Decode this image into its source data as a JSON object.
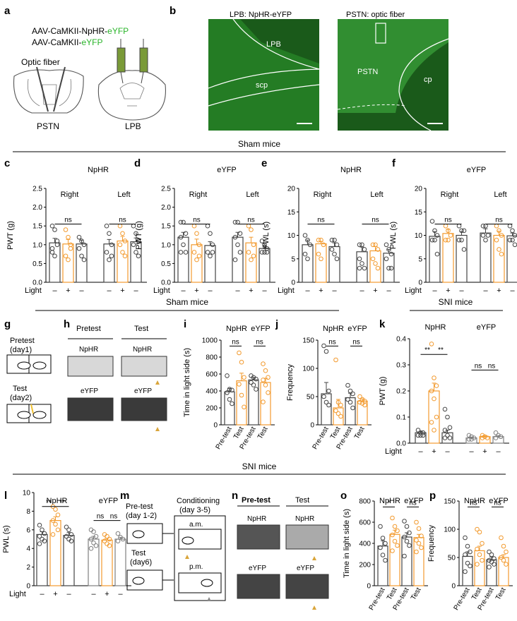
{
  "panel_letters": [
    "a",
    "b",
    "c",
    "d",
    "e",
    "f",
    "g",
    "h",
    "i",
    "j",
    "k",
    "l",
    "m",
    "n",
    "o",
    "p"
  ],
  "section_titles": {
    "sham1": "Sham mice",
    "sham2": "Sham mice",
    "sni1": "SNI mice",
    "sni2": "SNI mice"
  },
  "panel_a": {
    "line1_prefix": "AAV-CaMKII-NpHR-",
    "line1_suffix": "eYFP",
    "line2_prefix": "AAV-CaMKII-",
    "line2_suffix": "eYFP",
    "fiber": "Optic fiber",
    "left": "PSTN",
    "right": "LPB"
  },
  "panel_b": {
    "left_title": "LPB: NpHR-eYFP",
    "right_title": "PSTN: optic fiber",
    "lpb": "LPB",
    "scp": "scp",
    "pstn": "PSTN",
    "cp": "cp"
  },
  "light_label": "Light",
  "light_marks": [
    "–",
    "+",
    "–"
  ],
  "ns": "ns",
  "sig2": "**",
  "sig1": "*",
  "panel_g": {
    "pretest": "Pretest",
    "day1": "(day1)",
    "test": "Test",
    "day2": "(day2)"
  },
  "panel_h": {
    "pretest": "Pretest",
    "test": "Test",
    "npHR": "NpHR",
    "eyfp": "eYFP"
  },
  "panel_m": {
    "pretest": "Pre-test",
    "day12": "(day 1-2)",
    "cond": "Conditioning",
    "day35": "(day 3-5)",
    "am": "a.m.",
    "pm": "p.m.",
    "test": "Test",
    "day6": "(day6)"
  },
  "panel_n": {
    "pretest": "Pre-test",
    "test": "Test",
    "npHR": "NpHR",
    "eyfp": "eYFP"
  },
  "colors": {
    "orange": "#f29a2e",
    "grey": "#7f7f7f",
    "green": "#2ab52a",
    "gold": "#d9a53a",
    "darkgrey": "#444444"
  },
  "chart_data": [
    {
      "panel": "c",
      "type": "bar",
      "title": "NpHR",
      "groups": [
        "Right",
        "Left"
      ],
      "ylabel": "PWT (g)",
      "ylim": [
        0,
        2.5
      ],
      "yticks": [
        "0.0",
        "0.5",
        "1.0",
        "1.5",
        "2.0",
        "2.5"
      ],
      "values": [
        [
          1.05,
          1.02,
          1.02
        ],
        [
          1.02,
          1.1,
          1.08
        ]
      ],
      "errors": [
        [
          0.12,
          0.12,
          0.1
        ],
        [
          0.12,
          0.12,
          0.1
        ]
      ],
      "points": [
        [
          [
            1.5,
            1.4,
            1.0,
            0.8,
            0.7,
            1.1,
            0.9
          ],
          [
            1.4,
            1.2,
            1.0,
            0.7,
            0.6,
            0.9
          ],
          [
            1.2,
            1.1,
            1.0,
            0.9,
            0.7,
            0.6
          ]
        ],
        [
          [
            1.5,
            1.3,
            1.0,
            0.8,
            0.6,
            0.7
          ],
          [
            1.5,
            1.3,
            1.1,
            1.0,
            0.8,
            0.7
          ],
          [
            1.5,
            1.3,
            1.1,
            1.0,
            0.8,
            0.7
          ]
        ]
      ],
      "ns": [
        [
          0,
          2
        ],
        [
          0,
          2
        ]
      ]
    },
    {
      "panel": "d",
      "type": "bar",
      "title": "eYFP",
      "groups": [
        "Right",
        "Left"
      ],
      "ylabel": "PWT (g)",
      "ylim": [
        0,
        2.5
      ],
      "yticks": [
        "0.0",
        "0.5",
        "1.0",
        "1.5",
        "2.0",
        "2.5"
      ],
      "values": [
        [
          1.2,
          1.0,
          0.98
        ],
        [
          1.2,
          1.05,
          0.9
        ]
      ],
      "errors": [
        [
          0.13,
          0.15,
          0.1
        ],
        [
          0.13,
          0.15,
          0.06
        ]
      ],
      "points": [
        [
          [
            1.6,
            1.6,
            1.3,
            1.2,
            1.0,
            0.8,
            0.8
          ],
          [
            1.5,
            1.3,
            1.0,
            0.8,
            0.6,
            0.7
          ],
          [
            1.5,
            1.3,
            1.0,
            0.8,
            0.7,
            0.8
          ]
        ],
        [
          [
            1.6,
            1.6,
            1.3,
            1.2,
            1.0,
            0.8,
            0.6
          ],
          [
            1.5,
            1.4,
            1.0,
            0.8,
            0.6,
            0.7
          ],
          [
            1.1,
            1.0,
            0.9,
            0.8,
            0.8,
            0.8
          ]
        ]
      ],
      "ns": [
        [
          0,
          2
        ],
        [
          0,
          2
        ]
      ]
    },
    {
      "panel": "e",
      "type": "bar",
      "title": "NpHR",
      "groups": [
        "Right",
        "Left"
      ],
      "ylabel": "PWL (s)",
      "ylim": [
        0,
        20
      ],
      "yticks": [
        "0",
        "5",
        "10",
        "15",
        "20"
      ],
      "values": [
        [
          8,
          8.2,
          7.6
        ],
        [
          6.5,
          6.7,
          6.2
        ]
      ],
      "errors": [
        [
          1.0,
          0.5,
          0.8
        ],
        [
          1.0,
          0.9,
          0.8
        ]
      ],
      "points": [
        [
          [
            10,
            9,
            8,
            6,
            5
          ],
          [
            9,
            9,
            8,
            6,
            5
          ],
          [
            9,
            9,
            8,
            7,
            6,
            5
          ]
        ],
        [
          [
            8,
            8,
            7,
            5,
            4,
            3,
            3
          ],
          [
            8,
            8,
            7,
            5,
            4,
            3
          ],
          [
            8,
            7,
            6,
            5,
            3,
            3
          ]
        ]
      ],
      "ns": [
        [
          0,
          2
        ],
        [
          0,
          2
        ]
      ]
    },
    {
      "panel": "f",
      "type": "bar",
      "title": "eYFP",
      "groups": [
        "Right",
        "Left"
      ],
      "ylabel": "PWL (s)",
      "ylim": [
        0,
        20
      ],
      "yticks": [
        "0",
        "5",
        "10",
        "15",
        "20"
      ],
      "values": [
        [
          9.8,
          10.4,
          10
        ],
        [
          10.5,
          10,
          9.9
        ]
      ],
      "errors": [
        [
          1.0,
          0.9,
          0.8
        ],
        [
          0.9,
          0.9,
          0.6
        ]
      ],
      "points": [
        [
          [
            13,
            11,
            10,
            9,
            9,
            6
          ],
          [
            12,
            11,
            10,
            9,
            9
          ],
          [
            12,
            11,
            11,
            9,
            9,
            7
          ]
        ],
        [
          [
            12,
            12,
            10,
            10,
            9
          ],
          [
            12,
            11,
            10,
            9,
            7,
            6
          ],
          [
            12,
            11,
            10,
            9,
            9,
            8
          ]
        ]
      ],
      "ns": [
        [
          0,
          2
        ],
        [
          0,
          2
        ]
      ]
    },
    {
      "panel": "i",
      "type": "bar",
      "ylabel": "Time in light side (s)",
      "ylim": [
        0,
        1000
      ],
      "yticks": [
        "0",
        "200",
        "400",
        "600",
        "800",
        "1000"
      ],
      "groups": [
        "NpHR",
        "eYFP"
      ],
      "xticks": [
        "Pre-test",
        "Test",
        "Pre-test",
        "Test"
      ],
      "values": [
        390,
        520,
        530,
        500
      ],
      "errors": [
        [
          40,
          90
        ],
        [
          30,
          50
        ]
      ],
      "points": [
        [
          580,
          420,
          410,
          380,
          300,
          250
        ],
        [
          850,
          740,
          560,
          480,
          350,
          210
        ],
        [
          580,
          560,
          540,
          500,
          470,
          420
        ],
        [
          720,
          640,
          560,
          530,
          470,
          380,
          270
        ]
      ],
      "ns": [
        [
          0,
          1
        ],
        [
          2,
          3
        ]
      ]
    },
    {
      "panel": "j",
      "type": "bar",
      "ylabel": "Frequency",
      "ylim": [
        0,
        150
      ],
      "yticks": [
        "0",
        "50",
        "100",
        "150"
      ],
      "groups": [
        "NpHR",
        "eYFP"
      ],
      "xticks": [
        "Pre-test",
        "Test",
        "Pre-test",
        "Test"
      ],
      "values": [
        55,
        30,
        48,
        42
      ],
      "errors": [
        [
          20,
          15
        ],
        [
          8,
          4
        ]
      ],
      "points": [
        [
          140,
          130,
          60,
          50,
          40,
          35
        ],
        [
          115,
          40,
          35,
          25,
          20,
          15
        ],
        [
          70,
          60,
          55,
          45,
          40,
          30
        ],
        [
          50,
          45,
          42,
          40,
          38,
          35
        ]
      ],
      "ns": [
        [
          0,
          1
        ],
        [
          2,
          3
        ]
      ]
    },
    {
      "panel": "k",
      "type": "bar",
      "ylabel": "PWT (g)",
      "ylim": [
        0,
        0.4
      ],
      "yticks": [
        "0.0",
        "0.1",
        "0.2",
        "0.3",
        "0.4"
      ],
      "groups": [
        "NpHR",
        "eYFP"
      ],
      "values": [
        [
          0.04,
          0.2,
          0.04
        ],
        [
          0.02,
          0.025,
          0.025
        ]
      ],
      "errors": [
        [
          0.005,
          0.03,
          0.01
        ],
        [
          0.003,
          0.003,
          0.004
        ]
      ],
      "points": [
        [
          [
            0.05,
            0.04,
            0.04,
            0.03,
            0.03,
            0.03
          ],
          [
            0.38,
            0.25,
            0.22,
            0.2,
            0.17,
            0.1,
            0.08,
            0.05
          ],
          [
            0.13,
            0.1,
            0.06,
            0.05,
            0.03,
            0.02,
            0.02
          ]
        ],
        [
          [
            0.03,
            0.025,
            0.02,
            0.015,
            0.015
          ],
          [
            0.03,
            0.025,
            0.02,
            0.02
          ],
          [
            0.04,
            0.03,
            0.025,
            0.02
          ]
        ]
      ],
      "sig": [
        [
          "**",
          "**"
        ],
        [
          "ns",
          "ns"
        ]
      ]
    },
    {
      "panel": "l",
      "type": "bar",
      "ylabel": "PWL (s)",
      "ylim": [
        0,
        10
      ],
      "yticks": [
        "0",
        "2",
        "4",
        "6",
        "8",
        "10"
      ],
      "groups": [
        "NpHR",
        "eYFP"
      ],
      "values": [
        [
          5.5,
          7.0,
          5.4
        ],
        [
          5.0,
          4.9,
          5.0
        ]
      ],
      "errors": [
        [
          0.3,
          0.4,
          0.3
        ],
        [
          0.3,
          0.2,
          0.2
        ]
      ],
      "points": [
        [
          [
            6.5,
            6.0,
            5.6,
            5.3,
            5.0,
            4.8,
            4.5
          ],
          [
            8.5,
            8.2,
            7.6,
            7.0,
            6.6,
            6.0,
            5.5
          ],
          [
            6.3,
            6.0,
            5.5,
            5.3,
            5.0,
            4.8
          ]
        ],
        [
          [
            6.0,
            5.8,
            5.3,
            5.0,
            4.6,
            4.3,
            4.0
          ],
          [
            5.5,
            5.3,
            5.0,
            4.8,
            4.5,
            4.3
          ],
          [
            5.6,
            5.2,
            5.0,
            4.8
          ]
        ]
      ],
      "sig": [
        [
          "**",
          "**"
        ],
        [
          "ns",
          "ns"
        ]
      ]
    },
    {
      "panel": "o",
      "type": "bar",
      "ylabel": "Time in light side (s)",
      "ylim": [
        0,
        800
      ],
      "yticks": [
        "0",
        "200",
        "400",
        "600",
        "800"
      ],
      "groups": [
        "NpHR",
        "eYFP"
      ],
      "xticks": [
        "Pre-test",
        "Test",
        "Pre-test",
        "Test"
      ],
      "values": [
        375,
        485,
        460,
        455
      ],
      "errors": [
        [
          50,
          40
        ],
        [
          40,
          30
        ]
      ],
      "points": [
        [
          560,
          450,
          400,
          360,
          290,
          240
        ],
        [
          640,
          560,
          520,
          480,
          420,
          380,
          330
        ],
        [
          610,
          560,
          500,
          460,
          420,
          380,
          280
        ],
        [
          600,
          540,
          470,
          430,
          400,
          360,
          320
        ]
      ],
      "sig": [
        "*",
        "ns"
      ]
    },
    {
      "panel": "p",
      "type": "bar",
      "ylabel": "Frequency",
      "ylim": [
        0,
        150
      ],
      "yticks": [
        "0",
        "50",
        "100",
        "150"
      ],
      "groups": [
        "NpHR",
        "eYFP"
      ],
      "xticks": [
        "Pre-test",
        "Test",
        "Pre-test",
        "Test"
      ],
      "values": [
        52,
        62,
        46,
        50
      ],
      "errors": [
        [
          8,
          8
        ],
        [
          5,
          5
        ]
      ],
      "points": [
        [
          85,
          70,
          60,
          55,
          40,
          35,
          25
        ],
        [
          100,
          95,
          75,
          65,
          55,
          45,
          38
        ],
        [
          60,
          55,
          48,
          45,
          42,
          38,
          33
        ],
        [
          85,
          70,
          60,
          50,
          45,
          38
        ]
      ],
      "ns": [
        [
          0,
          1
        ],
        [
          2,
          3
        ]
      ]
    }
  ]
}
